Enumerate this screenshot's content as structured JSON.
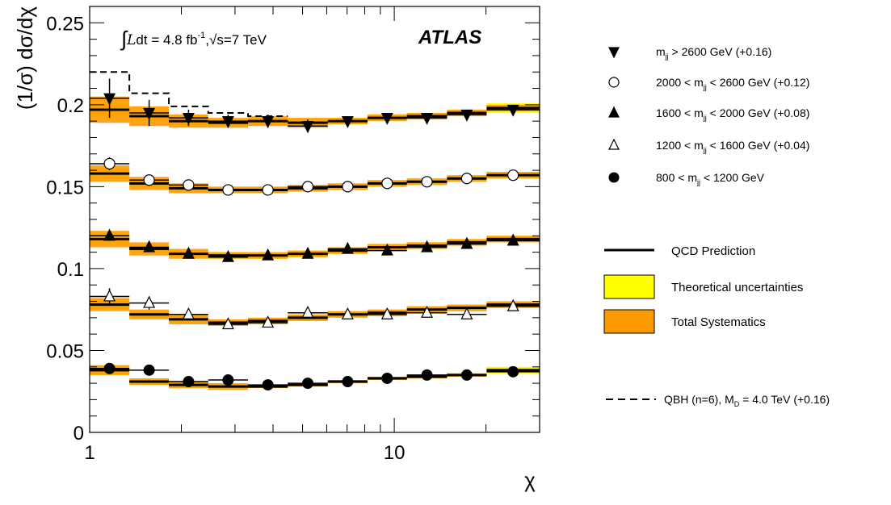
{
  "chart_data": {
    "type": "step",
    "xscale": "log",
    "xlim": [
      1,
      30
    ],
    "ylim": [
      0,
      0.26
    ],
    "xlabel": "χ",
    "ylabel": "(1/σ) dσ/dχ",
    "x_tick_labels": [
      {
        "value": 1,
        "label": "1"
      },
      {
        "value": 10,
        "label": "10"
      }
    ],
    "y_tick_labels": [
      {
        "value": 0,
        "label": "0"
      },
      {
        "value": 0.05,
        "label": "0.05"
      },
      {
        "value": 0.1,
        "label": "0.1"
      },
      {
        "value": 0.15,
        "label": "0.15"
      },
      {
        "value": 0.2,
        "label": "0.2"
      },
      {
        "value": 0.25,
        "label": "0.25"
      }
    ],
    "bin_edges": [
      1,
      1.35,
      1.82,
      2.45,
      3.31,
      4.47,
      6.05,
      8.17,
      11.0,
      14.9,
      20.1,
      30.0
    ],
    "experiment_label": "ATLAS",
    "lumi_label": {
      "integral": "∫",
      "L": "L",
      "text": "dt  = 4.8 fb",
      "sup": "-1",
      "rest": ",√s=7 TeV"
    },
    "legend_placement": "right-outside",
    "series": [
      {
        "name": "m_jj > 2600 GeV (+0.16)",
        "marker": "triangle-down-filled",
        "data": [
          0.204,
          0.195,
          0.192,
          0.19,
          0.19,
          0.187,
          0.19,
          0.192,
          0.192,
          0.194,
          0.197
        ],
        "errors": [
          0.012,
          0.008,
          0.005,
          0.004,
          0.004,
          0.004,
          0.003,
          0.003,
          0.003,
          0.003,
          0.003
        ],
        "prediction": [
          0.197,
          0.193,
          0.19,
          0.189,
          0.19,
          0.189,
          0.19,
          0.192,
          0.193,
          0.195,
          0.198
        ],
        "theory_unc": [
          0.004,
          0.003,
          0.003,
          0.002,
          0.002,
          0.002,
          0.002,
          0.002,
          0.002,
          0.002,
          0.003
        ],
        "total_sys": [
          0.008,
          0.006,
          0.004,
          0.003,
          0.003,
          0.003,
          0.002,
          0.002,
          0.002,
          0.002,
          0.002
        ]
      },
      {
        "name": "2000 < m_jj < 2600 GeV (+0.12)",
        "marker": "circle-open",
        "data": [
          0.164,
          0.154,
          0.151,
          0.148,
          0.148,
          0.15,
          0.15,
          0.152,
          0.153,
          0.155,
          0.157
        ],
        "errors": [
          0.004,
          0.003,
          0.002,
          0.002,
          0.002,
          0.002,
          0.002,
          0.002,
          0.002,
          0.002,
          0.002
        ],
        "prediction": [
          0.158,
          0.152,
          0.149,
          0.148,
          0.148,
          0.149,
          0.15,
          0.152,
          0.153,
          0.155,
          0.157
        ],
        "theory_unc": [
          0.003,
          0.002,
          0.002,
          0.002,
          0.002,
          0.002,
          0.002,
          0.002,
          0.002,
          0.002,
          0.002
        ],
        "total_sys": [
          0.005,
          0.004,
          0.003,
          0.002,
          0.002,
          0.002,
          0.002,
          0.002,
          0.002,
          0.002,
          0.002
        ]
      },
      {
        "name": "1600 < m_jj < 2000 GeV (+0.08)",
        "marker": "triangle-up-filled",
        "data": [
          0.12,
          0.113,
          0.109,
          0.107,
          0.108,
          0.109,
          0.112,
          0.111,
          0.113,
          0.115,
          0.117
        ],
        "errors": [
          0.003,
          0.002,
          0.002,
          0.002,
          0.002,
          0.002,
          0.002,
          0.002,
          0.002,
          0.002,
          0.002
        ],
        "prediction": [
          0.118,
          0.112,
          0.109,
          0.108,
          0.108,
          0.109,
          0.111,
          0.113,
          0.114,
          0.116,
          0.118
        ],
        "theory_unc": [
          0.003,
          0.002,
          0.002,
          0.002,
          0.002,
          0.002,
          0.002,
          0.002,
          0.002,
          0.002,
          0.002
        ],
        "total_sys": [
          0.005,
          0.004,
          0.003,
          0.002,
          0.002,
          0.002,
          0.002,
          0.002,
          0.002,
          0.002,
          0.002
        ]
      },
      {
        "name": "1200 < m_jj < 1600 GeV (+0.04)",
        "marker": "triangle-up-open",
        "data": [
          0.083,
          0.079,
          0.072,
          0.066,
          0.067,
          0.073,
          0.072,
          0.072,
          0.073,
          0.072,
          0.077
        ],
        "errors": [
          0.005,
          0.004,
          0.003,
          0.002,
          0.002,
          0.002,
          0.002,
          0.002,
          0.002,
          0.002,
          0.002
        ],
        "prediction": [
          0.078,
          0.072,
          0.069,
          0.067,
          0.068,
          0.07,
          0.072,
          0.073,
          0.075,
          0.076,
          0.078
        ],
        "theory_unc": [
          0.003,
          0.002,
          0.002,
          0.002,
          0.002,
          0.002,
          0.002,
          0.002,
          0.002,
          0.002,
          0.002
        ],
        "total_sys": [
          0.004,
          0.003,
          0.003,
          0.002,
          0.002,
          0.002,
          0.002,
          0.002,
          0.002,
          0.002,
          0.002
        ]
      },
      {
        "name": "800 < m_jj < 1200 GeV",
        "marker": "circle-filled",
        "data": [
          0.039,
          0.038,
          0.031,
          0.032,
          0.029,
          0.03,
          0.031,
          0.033,
          0.035,
          0.035,
          0.037
        ],
        "errors": [
          0.002,
          0.002,
          0.001,
          0.001,
          0.001,
          0.001,
          0.001,
          0.001,
          0.001,
          0.001,
          0.001
        ],
        "prediction": [
          0.038,
          0.031,
          0.029,
          0.028,
          0.028,
          0.029,
          0.031,
          0.033,
          0.034,
          0.035,
          0.038
        ],
        "theory_unc": [
          0.003,
          0.002,
          0.002,
          0.002,
          0.001,
          0.001,
          0.001,
          0.001,
          0.001,
          0.001,
          0.002
        ],
        "total_sys": [
          0.003,
          0.002,
          0.002,
          0.002,
          0.001,
          0.001,
          0.001,
          0.001,
          0.001,
          0.001,
          0.001
        ]
      }
    ],
    "qbh": {
      "name": "QBH (n=6), M_D = 4.0 TeV (+0.16)",
      "values": [
        0.22,
        0.207,
        0.199,
        0.195,
        0.193
      ]
    },
    "legend": {
      "markers": [
        {
          "marker": "triangle-down-filled",
          "pre": "m",
          "sub": "jj",
          "post": " > 2600 GeV (+0.16)"
        },
        {
          "marker": "circle-open",
          "pre": "2000 < m",
          "sub": "jj",
          "post": " < 2600 GeV (+0.12)"
        },
        {
          "marker": "triangle-up-filled",
          "pre": "1600 < m",
          "sub": "jj",
          "post": " < 2000 GeV (+0.08)"
        },
        {
          "marker": "triangle-up-open",
          "pre": "1200 < m",
          "sub": "jj",
          "post": " < 1600 GeV (+0.04)"
        },
        {
          "marker": "circle-filled",
          "pre": "800 < m",
          "sub": "jj",
          "post": " < 1200 GeV"
        }
      ],
      "qcd_label": "QCD Prediction",
      "theory_label": "Theoretical uncertainties",
      "sys_label": "Total Systematics",
      "qbh_pre": "QBH (n=6), M",
      "qbh_sub": "D",
      "qbh_post": " = 4.0 TeV (+0.16)"
    },
    "colors": {
      "theory_band": "#ffff00",
      "total_sys_band": "#ff9900",
      "prediction_line": "#000000",
      "data_marker": "#000000"
    }
  }
}
